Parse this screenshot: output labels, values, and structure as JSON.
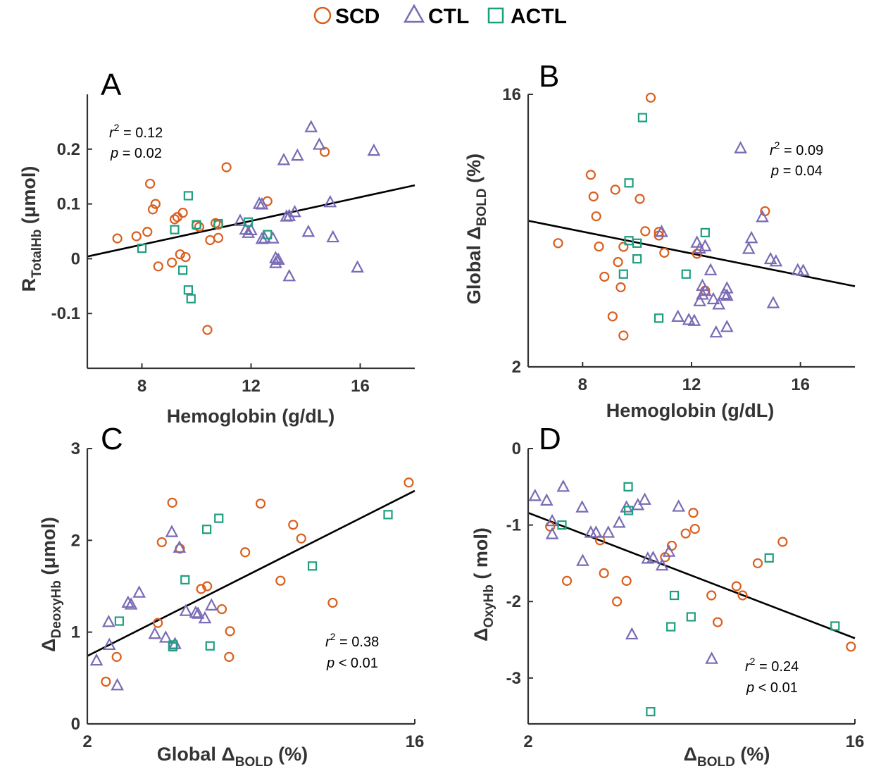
{
  "colors": {
    "SCD": "#d95f1e",
    "CTL": "#7a6bb5",
    "ACTL": "#1f9e7f",
    "fit": "#000000",
    "axis": "#333333"
  },
  "legend": [
    {
      "key": "SCD",
      "label": "SCD",
      "marker": "circle"
    },
    {
      "key": "CTL",
      "label": "CTL",
      "marker": "triangle"
    },
    {
      "key": "ACTL",
      "label": "ACTL",
      "marker": "square"
    }
  ],
  "chart_data": [
    {
      "type": "scatter",
      "letter": "A",
      "xlabel": "Hemoglobin (g/dL)",
      "ylabel": {
        "main": "R",
        "sub": "TotalHb",
        "tail": "  (μmol)"
      },
      "xlim": [
        6,
        18
      ],
      "ylim": [
        -0.2,
        0.3
      ],
      "xscale": "linear",
      "yscale": "linear",
      "xticks": [
        8,
        12,
        16
      ],
      "xticklabels": [
        "8",
        "12",
        "16"
      ],
      "yticks": [
        -0.1,
        0,
        0.1,
        0.2
      ],
      "yticklabels": [
        "-0.1",
        "0",
        "0.1",
        "0.2"
      ],
      "stats": {
        "r2": "= 0.12",
        "p": "= 0.02"
      },
      "fit": [
        [
          6,
          0.004
        ],
        [
          18,
          0.134
        ]
      ],
      "series": [
        {
          "name": "SCD",
          "points": [
            [
              7.1,
              0.037
            ],
            [
              7.8,
              0.041
            ],
            [
              8.2,
              0.049
            ],
            [
              8.3,
              0.137
            ],
            [
              8.4,
              0.09
            ],
            [
              8.5,
              0.1
            ],
            [
              8.6,
              -0.014
            ],
            [
              9.1,
              -0.007
            ],
            [
              9.2,
              0.072
            ],
            [
              9.3,
              0.076
            ],
            [
              9.4,
              0.008
            ],
            [
              9.5,
              0.084
            ],
            [
              9.6,
              0.003
            ],
            [
              10.0,
              0.061
            ],
            [
              10.1,
              0.058
            ],
            [
              10.4,
              -0.13
            ],
            [
              10.5,
              0.034
            ],
            [
              10.7,
              0.065
            ],
            [
              10.8,
              0.062
            ],
            [
              10.8,
              0.038
            ],
            [
              11.1,
              0.167
            ],
            [
              12.6,
              0.105
            ],
            [
              14.7,
              0.195
            ]
          ]
        },
        {
          "name": "CTL",
          "points": [
            [
              11.6,
              0.069
            ],
            [
              11.8,
              0.053
            ],
            [
              11.9,
              0.047
            ],
            [
              12.0,
              0.052
            ],
            [
              12.3,
              0.1
            ],
            [
              12.4,
              0.099
            ],
            [
              12.4,
              0.036
            ],
            [
              12.5,
              0.037
            ],
            [
              12.8,
              0.037
            ],
            [
              12.9,
              0.001
            ],
            [
              12.9,
              -0.008
            ],
            [
              13.0,
              -0.002
            ],
            [
              13.2,
              0.18
            ],
            [
              13.3,
              0.077
            ],
            [
              13.4,
              -0.032
            ],
            [
              13.4,
              0.078
            ],
            [
              13.6,
              0.085
            ],
            [
              13.7,
              0.188
            ],
            [
              14.1,
              0.049
            ],
            [
              14.2,
              0.24
            ],
            [
              14.5,
              0.208
            ],
            [
              14.9,
              0.103
            ],
            [
              15.0,
              0.039
            ],
            [
              15.9,
              -0.016
            ],
            [
              16.5,
              0.197
            ]
          ]
        },
        {
          "name": "ACTL",
          "points": [
            [
              8.0,
              0.019
            ],
            [
              9.2,
              0.053
            ],
            [
              9.5,
              -0.021
            ],
            [
              9.7,
              0.115
            ],
            [
              9.7,
              -0.057
            ],
            [
              9.8,
              -0.073
            ],
            [
              10.0,
              0.062
            ],
            [
              10.8,
              0.064
            ],
            [
              11.9,
              0.067
            ],
            [
              12.6,
              0.044
            ]
          ]
        }
      ]
    },
    {
      "type": "scatter",
      "letter": "B",
      "xlabel": "Hemoglobin (g/dL)",
      "ylabel": {
        "main": "Global Δ",
        "sub": "BOLD",
        "tail": "  (%)"
      },
      "xlim": [
        6,
        18
      ],
      "ylim": [
        2,
        16
      ],
      "xscale": "linear",
      "yscale": "log",
      "xticks": [
        8,
        12,
        16
      ],
      "xticklabels": [
        "8",
        "12",
        "16"
      ],
      "yticks": [
        2,
        16
      ],
      "yticklabels": [
        "2",
        "16"
      ],
      "stats": {
        "r2": "= 0.09",
        "p": "= 0.04"
      },
      "fit": [
        [
          6,
          6.1
        ],
        [
          18,
          3.7
        ]
      ],
      "series": [
        {
          "name": "SCD",
          "points": [
            [
              7.1,
              5.14
            ],
            [
              8.3,
              8.66
            ],
            [
              8.4,
              7.34
            ],
            [
              8.5,
              6.31
            ],
            [
              8.6,
              5.01
            ],
            [
              8.8,
              3.98
            ],
            [
              9.1,
              2.94
            ],
            [
              9.2,
              7.73
            ],
            [
              9.3,
              4.45
            ],
            [
              9.4,
              3.67
            ],
            [
              9.5,
              2.54
            ],
            [
              9.5,
              5.0
            ],
            [
              10.1,
              7.21
            ],
            [
              10.3,
              5.63
            ],
            [
              10.5,
              15.6
            ],
            [
              10.8,
              5.6
            ],
            [
              10.8,
              5.45
            ],
            [
              11.0,
              4.78
            ],
            [
              12.2,
              4.74
            ],
            [
              12.5,
              3.58
            ],
            [
              14.7,
              6.56
            ]
          ]
        },
        {
          "name": "CTL",
          "points": [
            [
              10.9,
              5.6
            ],
            [
              11.5,
              2.93
            ],
            [
              11.9,
              2.86
            ],
            [
              12.1,
              2.84
            ],
            [
              12.2,
              5.16
            ],
            [
              12.3,
              4.93
            ],
            [
              12.3,
              3.3
            ],
            [
              12.4,
              3.47
            ],
            [
              12.4,
              3.71
            ],
            [
              12.5,
              3.57
            ],
            [
              12.5,
              5.02
            ],
            [
              12.7,
              4.18
            ],
            [
              12.8,
              3.35
            ],
            [
              12.9,
              2.6
            ],
            [
              13.0,
              3.22
            ],
            [
              13.2,
              3.48
            ],
            [
              13.3,
              3.64
            ],
            [
              13.3,
              3.44
            ],
            [
              13.3,
              2.71
            ],
            [
              14.1,
              4.92
            ],
            [
              14.2,
              5.34
            ],
            [
              14.6,
              6.27
            ],
            [
              13.8,
              10.6
            ],
            [
              14.9,
              4.55
            ],
            [
              15.1,
              4.47
            ],
            [
              15.0,
              3.25
            ],
            [
              15.9,
              4.18
            ],
            [
              16.1,
              4.16
            ]
          ]
        },
        {
          "name": "ACTL",
          "points": [
            [
              9.5,
              4.06
            ],
            [
              9.7,
              5.24
            ],
            [
              9.7,
              8.14
            ],
            [
              10.0,
              5.14
            ],
            [
              10.0,
              4.56
            ],
            [
              10.2,
              13.4
            ],
            [
              10.8,
              2.9
            ],
            [
              11.8,
              4.06
            ],
            [
              12.5,
              5.57
            ]
          ]
        }
      ]
    },
    {
      "type": "scatter",
      "letter": "C",
      "xlabel": {
        "main": "Global Δ",
        "sub": "BOLD",
        "tail": "  (%)"
      },
      "ylabel": {
        "main": "Δ",
        "sub": "DeoxyHb",
        "tail": "  (μmol)"
      },
      "xlim": [
        2,
        16
      ],
      "ylim": [
        0,
        3
      ],
      "xscale": "log",
      "yscale": "linear",
      "xticks": [
        2,
        16
      ],
      "xticklabels": [
        "2",
        "16"
      ],
      "yticks": [
        0,
        1,
        2,
        3
      ],
      "yticklabels": [
        "0",
        "1",
        "2",
        "3"
      ],
      "stats": {
        "r2": "= 0.38",
        "p": "< 0.01"
      },
      "fit": [
        [
          2,
          0.74
        ],
        [
          16,
          2.54
        ]
      ],
      "series": [
        {
          "name": "SCD",
          "points": [
            [
              2.25,
              0.46
            ],
            [
              2.41,
              0.73
            ],
            [
              3.13,
              1.1
            ],
            [
              3.21,
              1.98
            ],
            [
              3.43,
              2.41
            ],
            [
              3.6,
              1.91
            ],
            [
              4.12,
              1.47
            ],
            [
              4.28,
              1.5
            ],
            [
              4.7,
              1.25
            ],
            [
              4.92,
              0.73
            ],
            [
              4.95,
              1.01
            ],
            [
              5.45,
              1.87
            ],
            [
              6.01,
              2.4
            ],
            [
              6.82,
              1.56
            ],
            [
              7.39,
              2.17
            ],
            [
              7.78,
              2.02
            ],
            [
              9.5,
              1.32
            ],
            [
              15.4,
              2.63
            ]
          ]
        },
        {
          "name": "CTL",
          "points": [
            [
              2.12,
              0.69
            ],
            [
              2.3,
              0.86
            ],
            [
              2.29,
              1.11
            ],
            [
              2.42,
              0.42
            ],
            [
              2.59,
              1.32
            ],
            [
              2.64,
              1.3
            ],
            [
              2.78,
              1.43
            ],
            [
              3.07,
              0.98
            ],
            [
              3.29,
              0.94
            ],
            [
              3.42,
              2.09
            ],
            [
              3.49,
              0.87
            ],
            [
              3.74,
              1.23
            ],
            [
              3.98,
              1.21
            ],
            [
              4.04,
              1.2
            ],
            [
              4.22,
              1.15
            ],
            [
              4.4,
              1.29
            ],
            [
              3.59,
              1.92
            ]
          ]
        },
        {
          "name": "ACTL",
          "points": [
            [
              2.45,
              1.12
            ],
            [
              3.44,
              0.84
            ],
            [
              3.45,
              0.86
            ],
            [
              3.72,
              1.57
            ],
            [
              4.27,
              2.12
            ],
            [
              4.36,
              0.85
            ],
            [
              4.61,
              2.24
            ],
            [
              8.35,
              1.72
            ],
            [
              13.5,
              2.28
            ]
          ]
        }
      ]
    },
    {
      "type": "scatter",
      "letter": "D",
      "xlabel": {
        "main": "Δ",
        "sub": "BOLD",
        "tail": "  (%)"
      },
      "ylabel": {
        "main": "Δ",
        "sub": "OxyHb",
        "tail": "  (   mol)"
      },
      "xlim": [
        2,
        16
      ],
      "ylim": [
        -3.6,
        0
      ],
      "xscale": "log",
      "yscale": "linear",
      "xticks": [
        2,
        16
      ],
      "xticklabels": [
        "2",
        "16"
      ],
      "yticks": [
        -3,
        -2,
        -1,
        0
      ],
      "yticklabels": [
        "-3",
        "-2",
        "-1",
        "0"
      ],
      "stats": {
        "r2": "= 0.24",
        "p": "< 0.01"
      },
      "fit": [
        [
          2,
          -0.84
        ],
        [
          16,
          -2.48
        ]
      ],
      "series": [
        {
          "name": "SCD",
          "points": [
            [
              2.3,
              -1.02
            ],
            [
              2.56,
              -1.73
            ],
            [
              3.16,
              -1.2
            ],
            [
              3.24,
              -1.63
            ],
            [
              3.52,
              -2.0
            ],
            [
              3.74,
              -1.73
            ],
            [
              4.78,
              -1.42
            ],
            [
              4.99,
              -1.27
            ],
            [
              5.45,
              -1.11
            ],
            [
              5.72,
              -0.84
            ],
            [
              5.78,
              -1.05
            ],
            [
              6.42,
              -1.92
            ],
            [
              6.68,
              -2.27
            ],
            [
              7.53,
              -1.8
            ],
            [
              7.83,
              -1.92
            ],
            [
              8.62,
              -1.5
            ],
            [
              10.1,
              -1.22
            ],
            [
              15.6,
              -2.59
            ]
          ]
        },
        {
          "name": "CTL",
          "points": [
            [
              2.09,
              -0.62
            ],
            [
              2.25,
              -0.68
            ],
            [
              2.33,
              -1.12
            ],
            [
              2.33,
              -0.95
            ],
            [
              2.5,
              -0.5
            ],
            [
              2.82,
              -0.77
            ],
            [
              2.98,
              -1.1
            ],
            [
              2.83,
              -1.47
            ],
            [
              3.08,
              -1.1
            ],
            [
              3.33,
              -1.1
            ],
            [
              3.57,
              -0.97
            ],
            [
              3.74,
              -0.77
            ],
            [
              3.87,
              -2.43
            ],
            [
              4.02,
              -0.74
            ],
            [
              4.2,
              -0.67
            ],
            [
              4.28,
              -1.44
            ],
            [
              4.43,
              -1.43
            ],
            [
              4.69,
              -1.53
            ],
            [
              4.9,
              -1.35
            ],
            [
              5.21,
              -0.76
            ],
            [
              6.43,
              -2.75
            ]
          ]
        },
        {
          "name": "ACTL",
          "points": [
            [
              2.48,
              -1.0
            ],
            [
              3.78,
              -0.5
            ],
            [
              3.79,
              -0.81
            ],
            [
              4.36,
              -3.44
            ],
            [
              4.96,
              -2.33
            ],
            [
              5.07,
              -1.92
            ],
            [
              5.64,
              -2.2
            ],
            [
              9.27,
              -1.43
            ],
            [
              14.1,
              -2.32
            ]
          ]
        }
      ]
    }
  ]
}
